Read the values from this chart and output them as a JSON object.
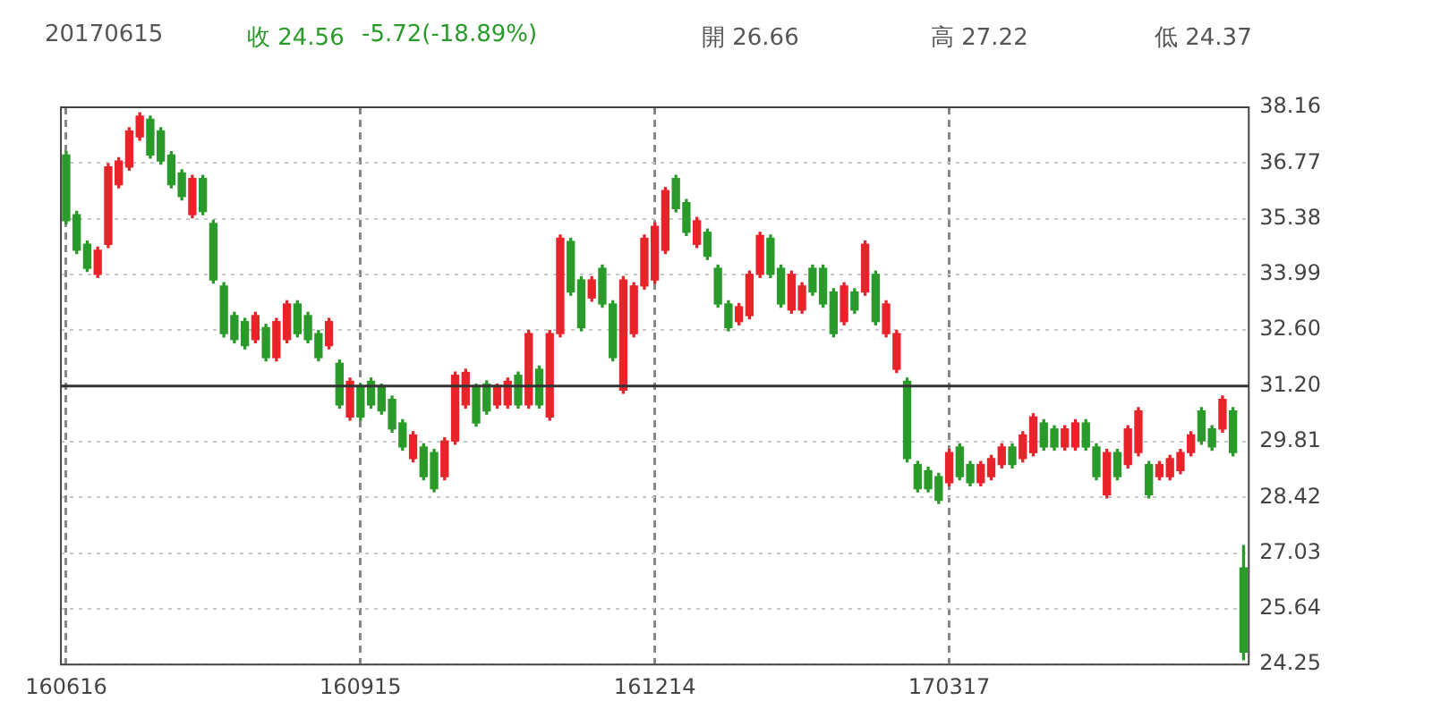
{
  "chart_data": {
    "type": "candlestick",
    "title": "20170615",
    "annotations": [
      "收 24.56",
      "-5.72(-18.89%)",
      "開 26.66",
      "高 27.22",
      "低 24.37"
    ],
    "categories": [
      "160616",
      null,
      null,
      null,
      null,
      null,
      null,
      null,
      null,
      null,
      null,
      null,
      null,
      null,
      null,
      null,
      null,
      null,
      null,
      null,
      null,
      null,
      null,
      null,
      null,
      null,
      null,
      null,
      "160915",
      null,
      null,
      null,
      null,
      null,
      null,
      null,
      null,
      null,
      null,
      null,
      null,
      null,
      null,
      null,
      null,
      null,
      null,
      null,
      null,
      null,
      null,
      null,
      null,
      null,
      null,
      null,
      "161214",
      null,
      null,
      null,
      null,
      null,
      null,
      null,
      null,
      null,
      null,
      null,
      null,
      null,
      null,
      null,
      null,
      null,
      null,
      null,
      null,
      null,
      null,
      null,
      null,
      null,
      null,
      null,
      "170317",
      null,
      null,
      null,
      null,
      null,
      null,
      null,
      null,
      null,
      null,
      null,
      null,
      null,
      null,
      null,
      null,
      null,
      null,
      null,
      null,
      null,
      null,
      null,
      null,
      null,
      null,
      null,
      null
    ],
    "ohlc": [
      [
        36.97,
        37.05,
        35.25,
        35.33
      ],
      [
        35.48,
        35.56,
        34.51,
        34.59
      ],
      [
        34.74,
        34.82,
        34.06,
        34.14
      ],
      [
        33.99,
        34.67,
        33.91,
        34.59
      ],
      [
        34.74,
        36.75,
        34.66,
        36.67
      ],
      [
        36.23,
        36.9,
        36.15,
        36.82
      ],
      [
        36.67,
        37.65,
        36.59,
        37.57
      ],
      [
        37.42,
        38.02,
        37.34,
        37.94
      ],
      [
        37.86,
        37.94,
        36.89,
        36.97
      ],
      [
        37.57,
        37.65,
        36.74,
        36.82
      ],
      [
        36.97,
        37.05,
        36.15,
        36.23
      ],
      [
        36.52,
        36.6,
        35.85,
        35.93
      ],
      [
        35.48,
        36.46,
        35.4,
        36.38
      ],
      [
        36.38,
        36.46,
        35.48,
        35.56
      ],
      [
        35.26,
        35.34,
        33.77,
        33.85
      ],
      [
        33.7,
        33.78,
        32.43,
        32.51
      ],
      [
        32.96,
        33.04,
        32.28,
        32.36
      ],
      [
        32.81,
        32.89,
        32.13,
        32.21
      ],
      [
        32.36,
        33.04,
        32.28,
        32.96
      ],
      [
        32.66,
        32.74,
        31.83,
        31.91
      ],
      [
        31.91,
        32.89,
        31.83,
        32.81
      ],
      [
        32.36,
        33.33,
        32.28,
        33.25
      ],
      [
        33.25,
        33.33,
        32.43,
        32.51
      ],
      [
        32.96,
        33.04,
        32.28,
        32.36
      ],
      [
        32.51,
        32.59,
        31.83,
        31.91
      ],
      [
        32.21,
        32.89,
        32.13,
        32.81
      ],
      [
        31.77,
        31.85,
        30.65,
        30.73
      ],
      [
        30.43,
        31.4,
        30.35,
        31.32
      ],
      [
        31.17,
        31.25,
        30.35,
        30.43
      ],
      [
        31.32,
        31.4,
        30.65,
        30.73
      ],
      [
        31.17,
        31.25,
        30.5,
        30.58
      ],
      [
        30.87,
        30.95,
        30.05,
        30.13
      ],
      [
        30.28,
        30.36,
        29.6,
        29.68
      ],
      [
        29.39,
        30.06,
        29.31,
        29.98
      ],
      [
        29.68,
        29.76,
        28.86,
        28.94
      ],
      [
        29.54,
        29.62,
        28.56,
        28.64
      ],
      [
        28.94,
        29.91,
        28.86,
        29.83
      ],
      [
        29.83,
        31.55,
        29.75,
        31.47
      ],
      [
        30.73,
        31.62,
        30.65,
        31.54
      ],
      [
        31.17,
        31.25,
        30.2,
        30.28
      ],
      [
        31.25,
        31.33,
        30.5,
        30.58
      ],
      [
        30.73,
        31.25,
        30.65,
        31.17
      ],
      [
        30.73,
        31.4,
        30.65,
        31.32
      ],
      [
        31.47,
        31.55,
        30.65,
        30.73
      ],
      [
        30.73,
        32.59,
        30.65,
        32.51
      ],
      [
        31.62,
        31.7,
        30.65,
        30.73
      ],
      [
        30.43,
        32.59,
        30.35,
        32.51
      ],
      [
        32.51,
        34.97,
        32.43,
        34.89
      ],
      [
        34.81,
        34.89,
        33.47,
        33.55
      ],
      [
        33.85,
        33.93,
        32.58,
        32.66
      ],
      [
        33.4,
        33.93,
        33.32,
        33.85
      ],
      [
        34.14,
        34.22,
        33.17,
        33.25
      ],
      [
        33.25,
        33.33,
        31.83,
        31.91
      ],
      [
        31.1,
        33.93,
        31.02,
        33.85
      ],
      [
        32.51,
        33.78,
        32.43,
        33.7
      ],
      [
        33.7,
        34.97,
        33.62,
        34.89
      ],
      [
        33.85,
        35.27,
        33.77,
        35.19
      ],
      [
        34.59,
        36.16,
        34.51,
        36.08
      ],
      [
        36.38,
        36.46,
        35.55,
        35.63
      ],
      [
        35.78,
        35.86,
        34.96,
        35.04
      ],
      [
        34.74,
        35.41,
        34.66,
        35.33
      ],
      [
        35.04,
        35.12,
        34.36,
        34.44
      ],
      [
        34.14,
        34.22,
        33.17,
        33.25
      ],
      [
        33.25,
        33.33,
        32.58,
        32.66
      ],
      [
        32.81,
        33.26,
        32.73,
        33.18
      ],
      [
        32.96,
        34.07,
        32.88,
        33.99
      ],
      [
        33.99,
        35.04,
        33.91,
        34.96
      ],
      [
        34.89,
        34.97,
        33.91,
        33.99
      ],
      [
        34.14,
        34.22,
        33.17,
        33.25
      ],
      [
        33.1,
        34.07,
        33.02,
        33.99
      ],
      [
        33.1,
        33.78,
        33.02,
        33.7
      ],
      [
        34.14,
        34.22,
        33.47,
        33.55
      ],
      [
        34.14,
        34.22,
        33.17,
        33.25
      ],
      [
        33.55,
        33.63,
        32.43,
        32.51
      ],
      [
        32.81,
        33.78,
        32.73,
        33.7
      ],
      [
        33.55,
        33.63,
        33.02,
        33.1
      ],
      [
        33.55,
        34.82,
        33.47,
        34.74
      ],
      [
        33.99,
        34.07,
        32.73,
        32.81
      ],
      [
        32.51,
        33.33,
        32.43,
        33.25
      ],
      [
        31.62,
        32.59,
        31.54,
        32.51
      ],
      [
        31.32,
        31.4,
        29.31,
        29.39
      ],
      [
        29.24,
        29.32,
        28.56,
        28.64
      ],
      [
        29.09,
        29.17,
        28.56,
        28.64
      ],
      [
        28.94,
        29.02,
        28.27,
        28.35
      ],
      [
        28.79,
        29.62,
        28.71,
        29.54
      ],
      [
        29.68,
        29.76,
        28.86,
        28.94
      ],
      [
        29.24,
        29.32,
        28.71,
        28.79
      ],
      [
        28.79,
        29.32,
        28.71,
        29.24
      ],
      [
        28.94,
        29.47,
        28.86,
        29.39
      ],
      [
        29.24,
        29.76,
        29.16,
        29.68
      ],
      [
        29.68,
        29.76,
        29.16,
        29.24
      ],
      [
        29.39,
        30.06,
        29.31,
        29.98
      ],
      [
        29.54,
        30.51,
        29.46,
        30.43
      ],
      [
        30.28,
        30.36,
        29.6,
        29.68
      ],
      [
        30.13,
        30.21,
        29.6,
        29.68
      ],
      [
        29.68,
        30.21,
        29.6,
        30.13
      ],
      [
        29.68,
        30.36,
        29.6,
        30.28
      ],
      [
        30.28,
        30.36,
        29.6,
        29.68
      ],
      [
        29.68,
        29.76,
        28.86,
        28.94
      ],
      [
        28.49,
        29.62,
        28.41,
        29.54
      ],
      [
        29.54,
        29.62,
        28.86,
        28.94
      ],
      [
        29.24,
        30.21,
        29.16,
        30.13
      ],
      [
        29.54,
        30.66,
        29.46,
        30.58
      ],
      [
        29.24,
        29.32,
        28.41,
        28.49
      ],
      [
        28.94,
        29.32,
        28.86,
        29.24
      ],
      [
        28.94,
        29.47,
        28.86,
        29.39
      ],
      [
        29.09,
        29.62,
        29.01,
        29.54
      ],
      [
        29.54,
        30.06,
        29.46,
        29.98
      ],
      [
        30.58,
        30.66,
        29.75,
        29.83
      ],
      [
        30.13,
        30.21,
        29.6,
        29.68
      ],
      [
        30.13,
        30.95,
        30.05,
        30.87
      ],
      [
        30.58,
        30.66,
        29.46,
        29.54
      ],
      [
        26.66,
        27.22,
        24.37,
        24.56
      ]
    ],
    "colors": [
      "#2a9a2a",
      "#2a9a2a",
      "#2a9a2a",
      "#e8232a",
      "#e8232a",
      "#e8232a",
      "#e8232a",
      "#e8232a",
      "#2a9a2a",
      "#2a9a2a",
      "#2a9a2a",
      "#2a9a2a",
      "#e8232a",
      "#2a9a2a",
      "#2a9a2a",
      "#2a9a2a",
      "#2a9a2a",
      "#2a9a2a",
      "#e8232a",
      "#2a9a2a",
      "#e8232a",
      "#e8232a",
      "#2a9a2a",
      "#2a9a2a",
      "#2a9a2a",
      "#e8232a",
      "#2a9a2a",
      "#e8232a",
      "#2a9a2a",
      "#2a9a2a",
      "#2a9a2a",
      "#2a9a2a",
      "#2a9a2a",
      "#e8232a",
      "#2a9a2a",
      "#2a9a2a",
      "#e8232a",
      "#e8232a",
      "#e8232a",
      "#2a9a2a",
      "#2a9a2a",
      "#e8232a",
      "#e8232a",
      "#2a9a2a",
      "#e8232a",
      "#2a9a2a",
      "#e8232a",
      "#e8232a",
      "#2a9a2a",
      "#2a9a2a",
      "#e8232a",
      "#2a9a2a",
      "#2a9a2a",
      "#e8232a",
      "#e8232a",
      "#e8232a",
      "#e8232a",
      "#e8232a",
      "#2a9a2a",
      "#2a9a2a",
      "#e8232a",
      "#2a9a2a",
      "#2a9a2a",
      "#2a9a2a",
      "#e8232a",
      "#e8232a",
      "#e8232a",
      "#2a9a2a",
      "#2a9a2a",
      "#e8232a",
      "#e8232a",
      "#2a9a2a",
      "#2a9a2a",
      "#2a9a2a",
      "#e8232a",
      "#2a9a2a",
      "#e8232a",
      "#2a9a2a",
      "#e8232a",
      "#e8232a",
      "#2a9a2a",
      "#2a9a2a",
      "#2a9a2a",
      "#2a9a2a",
      "#e8232a",
      "#2a9a2a",
      "#2a9a2a",
      "#e8232a",
      "#e8232a",
      "#e8232a",
      "#2a9a2a",
      "#e8232a",
      "#e8232a",
      "#2a9a2a",
      "#2a9a2a",
      "#e8232a",
      "#e8232a",
      "#2a9a2a",
      "#2a9a2a",
      "#e8232a",
      "#2a9a2a",
      "#e8232a",
      "#e8232a",
      "#2a9a2a",
      "#e8232a",
      "#e8232a",
      "#e8232a",
      "#e8232a",
      "#2a9a2a",
      "#2a9a2a",
      "#e8232a",
      "#2a9a2a",
      "#2a9a2a"
    ],
    "ylim": [
      24.25,
      38.16
    ],
    "yticks": [
      24.25,
      {
        "value": 25.64,
        "label": "25.64"
      },
      27.03,
      28.42,
      29.81,
      {
        "value": 31.2,
        "label": "31.20"
      },
      {
        "value": 32.6,
        "label": "32.60"
      },
      33.99,
      35.38,
      36.77,
      38.16
    ],
    "grid": true,
    "ref_lines": [
      {
        "axis": "y",
        "value": 31.2,
        "color": "#333333"
      }
    ]
  }
}
